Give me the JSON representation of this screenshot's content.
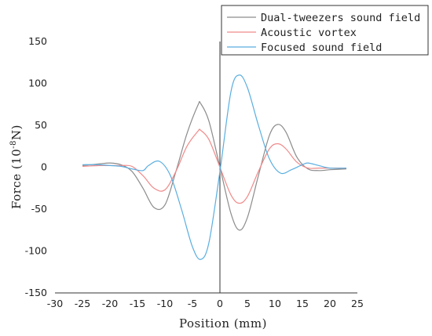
{
  "chart_data": {
    "type": "line",
    "xlabel": "Position (mm)",
    "ylabel_main": "Force (10",
    "ylabel_exp": "-8",
    "ylabel_tail": "N)",
    "xlim": [
      -30,
      25
    ],
    "ylim": [
      -150,
      150
    ],
    "xticks": [
      -30,
      -25,
      -20,
      -15,
      -10,
      -5,
      0,
      5,
      10,
      15,
      20,
      25
    ],
    "yticks": [
      -150,
      -100,
      -50,
      0,
      50,
      100,
      150
    ],
    "grid": false,
    "legend_position": "top-right",
    "series": [
      {
        "name": "Dual-tweezers sound field",
        "color": "#8c8c8c",
        "x": [
          -25,
          -22,
          -20,
          -18,
          -16,
          -14,
          -12,
          -10,
          -8,
          -6,
          -4,
          -3.5,
          -2,
          0,
          2,
          3.5,
          5,
          7,
          9,
          10.5,
          12,
          14,
          16,
          18,
          20,
          23
        ],
        "y": [
          2,
          4,
          5,
          3,
          -5,
          -25,
          -48,
          -45,
          -5,
          40,
          74,
          76,
          55,
          0,
          -55,
          -75,
          -60,
          -10,
          38,
          51,
          42,
          12,
          -2,
          -4,
          -3,
          -2
        ]
      },
      {
        "name": "Acoustic vortex",
        "color": "#f08a8a",
        "x": [
          -25,
          -22,
          -20,
          -18,
          -16,
          -14,
          -12,
          -10,
          -8,
          -6,
          -4,
          -3.5,
          -2,
          0,
          2,
          3.5,
          5,
          7,
          9,
          10.5,
          12,
          14,
          16,
          18,
          20,
          23
        ],
        "y": [
          1,
          2,
          2,
          2,
          1,
          -10,
          -25,
          -27,
          -5,
          25,
          43,
          44,
          33,
          0,
          -33,
          -43,
          -35,
          -5,
          22,
          28,
          22,
          6,
          -1,
          -1,
          -1,
          -1
        ]
      },
      {
        "name": "Focused sound field",
        "color": "#5aaee0",
        "x": [
          -25,
          -22,
          -20,
          -18,
          -16,
          -14,
          -13,
          -11,
          -9,
          -7,
          -5,
          -3.5,
          -2,
          0,
          2,
          3.5,
          5,
          7,
          9,
          11,
          13,
          15,
          16,
          18,
          20,
          23
        ],
        "y": [
          3,
          3,
          2,
          1,
          -2,
          -4,
          2,
          7,
          -10,
          -50,
          -95,
          -110,
          -90,
          -5,
          90,
          110,
          95,
          50,
          10,
          -7,
          -3,
          3,
          5,
          2,
          -1,
          -1
        ]
      }
    ]
  }
}
